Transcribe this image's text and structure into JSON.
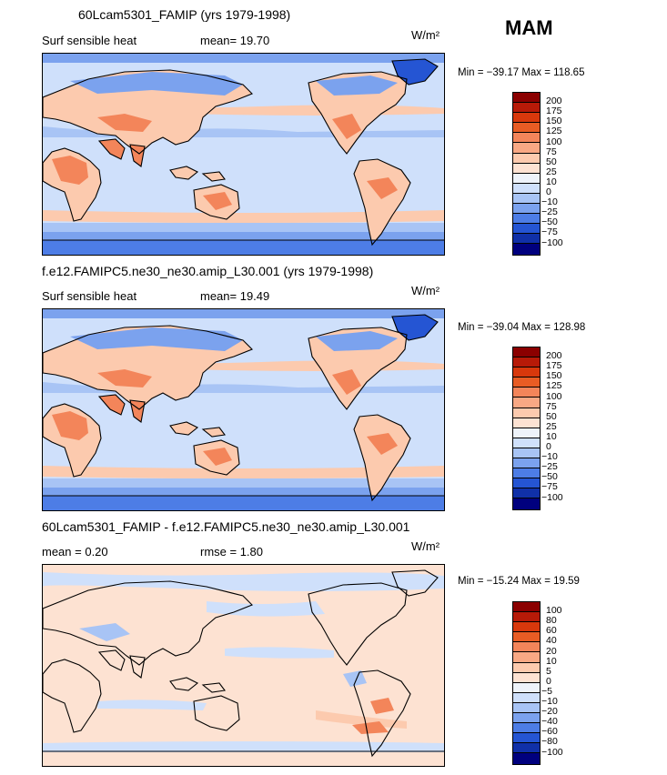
{
  "season": "MAM",
  "panels": [
    {
      "title": "60Lcam5301_FAMIP (yrs 1979-1998)",
      "left_label": "Surf sensible heat",
      "mid_label": "mean=  19.70",
      "units": "W/m²",
      "minmax": "Min = −39.17 Max = 118.65",
      "scale": "abs",
      "labels": [
        "200",
        "175",
        "150",
        "125",
        "100",
        "75",
        "50",
        "25",
        "10",
        "0",
        "−10",
        "−25",
        "−50",
        "−75",
        "−100"
      ]
    },
    {
      "title": "f.e12.FAMIPC5.ne30_ne30.amip_L30.001 (yrs 1979-1998)",
      "left_label": "Surf sensible heat",
      "mid_label": "mean=  19.49",
      "units": "W/m²",
      "minmax": "Min = −39.04 Max = 128.98",
      "scale": "abs",
      "labels": [
        "200",
        "175",
        "150",
        "125",
        "100",
        "75",
        "50",
        "25",
        "10",
        "0",
        "−10",
        "−25",
        "−50",
        "−75",
        "−100"
      ]
    },
    {
      "title": "60Lcam5301_FAMIP - f.e12.FAMIPC5.ne30_ne30.amip_L30.001",
      "left_label": "mean =    0.20",
      "mid_label": "rmse =    1.80",
      "units": "W/m²",
      "minmax": "Min = −15.24 Max =  19.59",
      "scale": "diff",
      "labels": [
        "100",
        "80",
        "60",
        "40",
        "20",
        "10",
        "5",
        "0",
        "−5",
        "−10",
        "−20",
        "−40",
        "−60",
        "−80",
        "−100"
      ]
    }
  ],
  "colors": {
    "colorbar": [
      "#8b0000",
      "#b71a08",
      "#d8380c",
      "#e85c24",
      "#f3855a",
      "#f8a884",
      "#fccaae",
      "#fde2d2",
      "#eef3fa",
      "#cfe0fb",
      "#a8c4f5",
      "#7ba2ee",
      "#4d7de6",
      "#2555d3",
      "#1030a8",
      "#00007e"
    ],
    "ocean_abs": "#d6e4fb",
    "ocean_diff": "#fde2d2"
  }
}
